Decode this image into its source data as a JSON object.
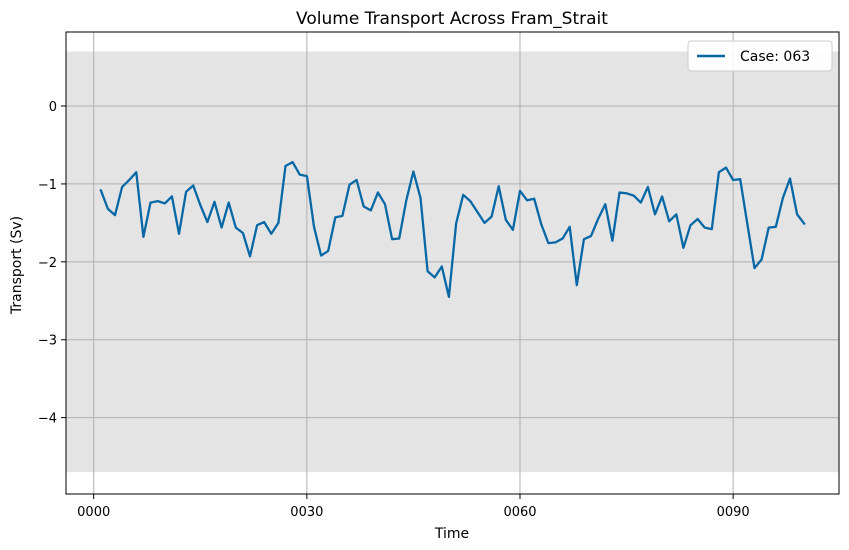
{
  "chart_data": {
    "type": "line",
    "title": "Volume Transport Across Fram_Strait",
    "xlabel": "Time",
    "ylabel": "Transport (Sv)",
    "xlim": [
      -3.9,
      104.9
    ],
    "ylim": [
      -4.98,
      0.95
    ],
    "x_ticks": [
      0,
      30,
      60,
      90
    ],
    "x_tick_labels": [
      "0000",
      "0030",
      "0060",
      "0090"
    ],
    "y_ticks": [
      0,
      -1,
      -2,
      -3,
      -4
    ],
    "y_tick_labels": [
      "0",
      "−1",
      "−2",
      "−3",
      "−4"
    ],
    "grid": true,
    "legend_position": "top-right",
    "band": {
      "ymin": -4.7,
      "ymax": 0.7,
      "color": "#e4e4e4"
    },
    "series": [
      {
        "name": "Case: 063",
        "color": "#0868a6",
        "x": [
          1,
          2,
          3,
          4,
          5,
          6,
          7,
          8,
          9,
          10,
          11,
          12,
          13,
          14,
          15,
          16,
          17,
          18,
          19,
          20,
          21,
          22,
          23,
          24,
          25,
          26,
          27,
          28,
          29,
          30,
          31,
          32,
          33,
          34,
          35,
          36,
          37,
          38,
          39,
          40,
          41,
          42,
          43,
          44,
          45,
          46,
          47,
          48,
          49,
          50,
          51,
          52,
          53,
          54,
          55,
          56,
          57,
          58,
          59,
          60,
          61,
          62,
          63,
          64,
          65,
          66,
          67,
          68,
          69,
          70,
          71,
          72,
          73,
          74,
          75,
          76,
          77,
          78,
          79,
          80,
          81,
          82,
          83,
          84,
          85,
          86,
          87,
          88,
          89,
          90,
          91,
          92,
          93,
          94,
          95,
          96,
          97,
          98,
          99,
          100
        ],
        "y": [
          -1.08,
          -1.32,
          -1.4,
          -1.04,
          -0.95,
          -0.85,
          -1.68,
          -1.24,
          -1.22,
          -1.25,
          -1.16,
          -1.64,
          -1.1,
          -1.02,
          -1.27,
          -1.49,
          -1.23,
          -1.56,
          -1.24,
          -1.56,
          -1.63,
          -1.93,
          -1.53,
          -1.49,
          -1.64,
          -1.5,
          -0.77,
          -0.72,
          -0.88,
          -0.9,
          -1.55,
          -1.92,
          -1.86,
          -1.43,
          -1.41,
          -1.01,
          -0.95,
          -1.29,
          -1.34,
          -1.11,
          -1.26,
          -1.71,
          -1.7,
          -1.21,
          -0.84,
          -1.18,
          -2.12,
          -2.2,
          -2.06,
          -2.45,
          -1.51,
          -1.14,
          -1.22,
          -1.36,
          -1.5,
          -1.42,
          -1.03,
          -1.46,
          -1.59,
          -1.09,
          -1.21,
          -1.19,
          -1.52,
          -1.76,
          -1.75,
          -1.7,
          -1.55,
          -2.3,
          -1.71,
          -1.67,
          -1.45,
          -1.26,
          -1.73,
          -1.11,
          -1.12,
          -1.15,
          -1.24,
          -1.04,
          -1.39,
          -1.16,
          -1.48,
          -1.39,
          -1.82,
          -1.53,
          -1.45,
          -1.56,
          -1.58,
          -0.85,
          -0.79,
          -0.95,
          -0.94,
          -1.51,
          -2.08,
          -1.97,
          -1.56,
          -1.55,
          -1.18,
          -0.93,
          -1.39,
          -1.51
        ]
      }
    ]
  }
}
